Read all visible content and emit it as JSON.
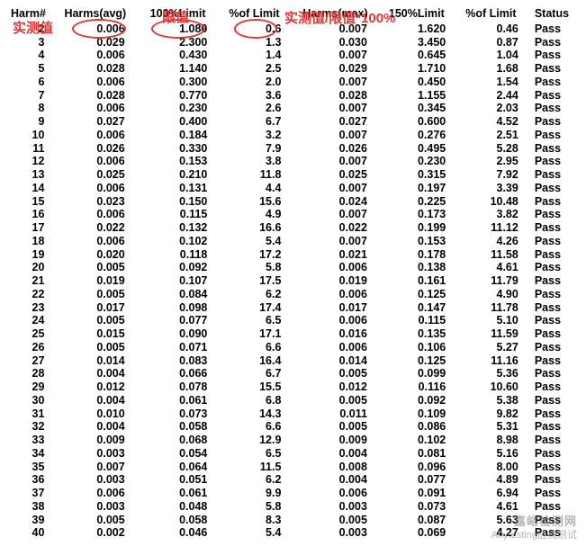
{
  "annotations": {
    "label_measured": "实测值",
    "label_limit": "限值",
    "label_formula": "实测值/限值*100%",
    "color": "#e53535"
  },
  "table": {
    "columns": [
      "Harm#",
      "Harms(avg)",
      "100%Limit",
      "%of Limit",
      "Harms(max)",
      "150%Limit",
      "%of Limit",
      "Status"
    ],
    "col_classes": [
      "c0",
      "c1",
      "c2",
      "c3",
      "c4",
      "c5",
      "c6",
      "c7"
    ],
    "rows": [
      [
        "2",
        "0.006",
        "1.080",
        "0.6",
        "0.007",
        "1.620",
        "0.46",
        "Pass"
      ],
      [
        "3",
        "0.029",
        "2.300",
        "1.3",
        "0.030",
        "3.450",
        "0.87",
        "Pass"
      ],
      [
        "4",
        "0.006",
        "0.430",
        "1.4",
        "0.007",
        "0.645",
        "1.04",
        "Pass"
      ],
      [
        "5",
        "0.028",
        "1.140",
        "2.5",
        "0.029",
        "1.710",
        "1.68",
        "Pass"
      ],
      [
        "6",
        "0.006",
        "0.300",
        "2.0",
        "0.007",
        "0.450",
        "1.54",
        "Pass"
      ],
      [
        "7",
        "0.028",
        "0.770",
        "3.6",
        "0.028",
        "1.155",
        "2.44",
        "Pass"
      ],
      [
        "8",
        "0.006",
        "0.230",
        "2.6",
        "0.007",
        "0.345",
        "2.03",
        "Pass"
      ],
      [
        "9",
        "0.027",
        "0.400",
        "6.7",
        "0.027",
        "0.600",
        "4.52",
        "Pass"
      ],
      [
        "10",
        "0.006",
        "0.184",
        "3.2",
        "0.007",
        "0.276",
        "2.51",
        "Pass"
      ],
      [
        "11",
        "0.026",
        "0.330",
        "7.9",
        "0.026",
        "0.495",
        "5.28",
        "Pass"
      ],
      [
        "12",
        "0.006",
        "0.153",
        "3.8",
        "0.007",
        "0.230",
        "2.95",
        "Pass"
      ],
      [
        "13",
        "0.025",
        "0.210",
        "11.8",
        "0.025",
        "0.315",
        "7.92",
        "Pass"
      ],
      [
        "14",
        "0.006",
        "0.131",
        "4.4",
        "0.007",
        "0.197",
        "3.39",
        "Pass"
      ],
      [
        "15",
        "0.023",
        "0.150",
        "15.6",
        "0.024",
        "0.225",
        "10.48",
        "Pass"
      ],
      [
        "16",
        "0.006",
        "0.115",
        "4.9",
        "0.007",
        "0.173",
        "3.82",
        "Pass"
      ],
      [
        "17",
        "0.022",
        "0.132",
        "16.6",
        "0.022",
        "0.199",
        "11.12",
        "Pass"
      ],
      [
        "18",
        "0.006",
        "0.102",
        "5.4",
        "0.007",
        "0.153",
        "4.26",
        "Pass"
      ],
      [
        "19",
        "0.020",
        "0.118",
        "17.2",
        "0.021",
        "0.178",
        "11.58",
        "Pass"
      ],
      [
        "20",
        "0.005",
        "0.092",
        "5.8",
        "0.006",
        "0.138",
        "4.61",
        "Pass"
      ],
      [
        "21",
        "0.019",
        "0.107",
        "17.5",
        "0.019",
        "0.161",
        "11.79",
        "Pass"
      ],
      [
        "22",
        "0.005",
        "0.084",
        "6.2",
        "0.006",
        "0.125",
        "4.90",
        "Pass"
      ],
      [
        "23",
        "0.017",
        "0.098",
        "17.4",
        "0.017",
        "0.147",
        "11.78",
        "Pass"
      ],
      [
        "24",
        "0.005",
        "0.077",
        "6.5",
        "0.006",
        "0.115",
        "5.10",
        "Pass"
      ],
      [
        "25",
        "0.015",
        "0.090",
        "17.1",
        "0.016",
        "0.135",
        "11.59",
        "Pass"
      ],
      [
        "26",
        "0.005",
        "0.071",
        "6.6",
        "0.006",
        "0.106",
        "5.27",
        "Pass"
      ],
      [
        "27",
        "0.014",
        "0.083",
        "16.4",
        "0.014",
        "0.125",
        "11.16",
        "Pass"
      ],
      [
        "28",
        "0.004",
        "0.066",
        "6.7",
        "0.005",
        "0.099",
        "5.36",
        "Pass"
      ],
      [
        "29",
        "0.012",
        "0.078",
        "15.5",
        "0.012",
        "0.116",
        "10.60",
        "Pass"
      ],
      [
        "30",
        "0.004",
        "0.061",
        "6.8",
        "0.005",
        "0.092",
        "5.38",
        "Pass"
      ],
      [
        "31",
        "0.010",
        "0.073",
        "14.3",
        "0.011",
        "0.109",
        "9.82",
        "Pass"
      ],
      [
        "32",
        "0.004",
        "0.058",
        "6.6",
        "0.005",
        "0.086",
        "5.31",
        "Pass"
      ],
      [
        "33",
        "0.009",
        "0.068",
        "12.9",
        "0.009",
        "0.102",
        "8.98",
        "Pass"
      ],
      [
        "34",
        "0.003",
        "0.054",
        "6.5",
        "0.004",
        "0.081",
        "5.16",
        "Pass"
      ],
      [
        "35",
        "0.007",
        "0.064",
        "11.5",
        "0.008",
        "0.096",
        "8.00",
        "Pass"
      ],
      [
        "36",
        "0.003",
        "0.051",
        "6.2",
        "0.004",
        "0.077",
        "4.89",
        "Pass"
      ],
      [
        "37",
        "0.006",
        "0.061",
        "9.9",
        "0.006",
        "0.091",
        "6.94",
        "Pass"
      ],
      [
        "38",
        "0.003",
        "0.048",
        "5.8",
        "0.003",
        "0.073",
        "4.61",
        "Pass"
      ],
      [
        "39",
        "0.005",
        "0.058",
        "8.3",
        "0.005",
        "0.087",
        "5.63",
        "Pass"
      ],
      [
        "40",
        "0.002",
        "0.046",
        "5.4",
        "0.003",
        "0.069",
        "4.27",
        "Pass"
      ]
    ]
  },
  "watermark": {
    "line1": "嘉峪检测网",
    "line2": "Anytesting医械测试"
  }
}
